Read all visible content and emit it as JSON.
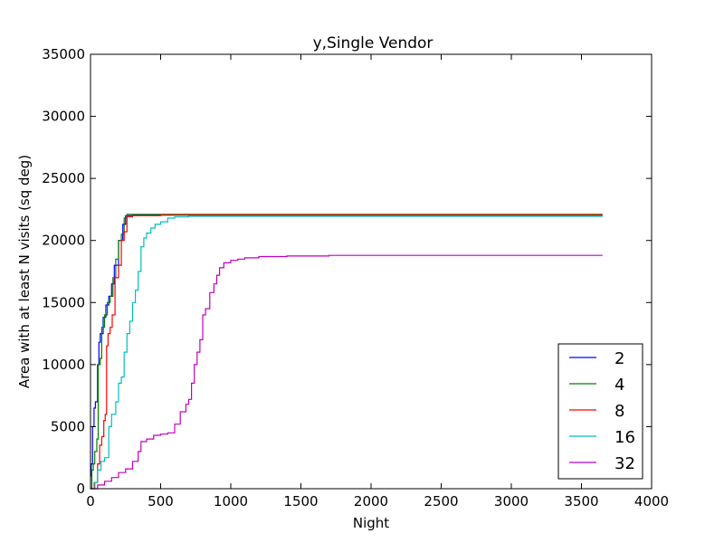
{
  "chart_data": {
    "type": "line",
    "title": "y,Single Vendor",
    "xlabel": "Night",
    "ylabel": "Area with at least N visits (sq deg)",
    "xlim": [
      0,
      4000
    ],
    "ylim": [
      0,
      35000
    ],
    "xticks": [
      "0",
      "500",
      "1000",
      "1500",
      "2000",
      "2500",
      "3000",
      "3500",
      "4000"
    ],
    "yticks": [
      "0",
      "5000",
      "10000",
      "15000",
      "20000",
      "25000",
      "30000",
      "35000"
    ],
    "grid": false,
    "legend_position": "bottom-right",
    "series": [
      {
        "name": "2",
        "color": "#0000ff",
        "x": [
          0,
          5,
          15,
          25,
          35,
          50,
          60,
          70,
          90,
          110,
          130,
          150,
          170,
          200,
          230,
          250,
          300,
          500,
          1000,
          2000,
          3000,
          3650
        ],
        "y": [
          1000,
          2000,
          5000,
          6500,
          7000,
          10000,
          11800,
          12500,
          13800,
          14800,
          15500,
          16500,
          18000,
          20000,
          21300,
          22000,
          22050,
          22050,
          22050,
          22050,
          22050,
          22050
        ]
      },
      {
        "name": "4",
        "color": "#008000",
        "x": [
          0,
          10,
          20,
          30,
          45,
          55,
          70,
          80,
          100,
          120,
          140,
          160,
          180,
          200,
          220,
          240,
          260,
          300,
          500,
          1000,
          2000,
          3650
        ],
        "y": [
          0,
          1500,
          2000,
          3000,
          4000,
          10000,
          10500,
          13000,
          14000,
          15000,
          15500,
          17000,
          18500,
          20000,
          20500,
          21800,
          22100,
          22100,
          22100,
          22100,
          22100,
          22100
        ]
      },
      {
        "name": "8",
        "color": "#ff0000",
        "x": [
          0,
          30,
          50,
          65,
          80,
          95,
          105,
          115,
          125,
          140,
          155,
          175,
          200,
          220,
          240,
          260,
          300,
          500,
          1000,
          2000,
          3650
        ],
        "y": [
          0,
          500,
          2000,
          3500,
          4200,
          5500,
          6000,
          11500,
          12500,
          13000,
          14000,
          17000,
          18000,
          20000,
          20700,
          21900,
          22000,
          22050,
          22050,
          22050,
          22050
        ]
      },
      {
        "name": "16",
        "color": "#00bfbf",
        "x": [
          0,
          25,
          50,
          75,
          100,
          130,
          150,
          180,
          200,
          220,
          240,
          260,
          280,
          300,
          320,
          340,
          360,
          380,
          400,
          430,
          460,
          500,
          550,
          600,
          700,
          1000,
          2000,
          3650
        ],
        "y": [
          0,
          500,
          1500,
          2200,
          2500,
          5000,
          6000,
          7000,
          8500,
          9000,
          11000,
          12500,
          13500,
          15000,
          16000,
          17500,
          19500,
          20200,
          20600,
          21000,
          21300,
          21500,
          21800,
          21900,
          21950,
          21950,
          21950,
          21950
        ]
      },
      {
        "name": "32",
        "color": "#bf00bf",
        "x": [
          0,
          50,
          100,
          150,
          200,
          250,
          300,
          340,
          360,
          400,
          450,
          500,
          550,
          600,
          640,
          680,
          700,
          720,
          740,
          760,
          780,
          800,
          820,
          850,
          880,
          900,
          920,
          950,
          1000,
          1050,
          1100,
          1200,
          1400,
          1700,
          2000,
          3000,
          3650
        ],
        "y": [
          0,
          300,
          600,
          900,
          1300,
          1600,
          2200,
          3000,
          3800,
          4000,
          4300,
          4400,
          4500,
          5200,
          6200,
          6800,
          7200,
          8500,
          10000,
          11000,
          12000,
          14000,
          14500,
          15800,
          16500,
          17200,
          17800,
          18200,
          18400,
          18500,
          18600,
          18700,
          18750,
          18800,
          18800,
          18800,
          18800
        ]
      }
    ]
  }
}
